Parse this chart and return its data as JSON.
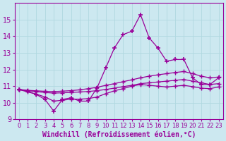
{
  "xlabel": "Windchill (Refroidissement éolien,°C)",
  "x": [
    0,
    1,
    2,
    3,
    4,
    5,
    6,
    7,
    8,
    9,
    10,
    11,
    12,
    13,
    14,
    15,
    16,
    17,
    18,
    19,
    20,
    21,
    22,
    23
  ],
  "y_peak": [
    10.8,
    10.7,
    10.5,
    10.2,
    9.5,
    10.2,
    10.3,
    10.1,
    10.1,
    10.9,
    12.1,
    13.3,
    14.1,
    14.3,
    15.3,
    13.9,
    13.3,
    12.5,
    12.6,
    12.6,
    11.5,
    11.1,
    11.1,
    11.5
  ],
  "y_upper": [
    10.8,
    10.75,
    10.72,
    10.69,
    10.67,
    10.7,
    10.73,
    10.78,
    10.85,
    10.93,
    11.05,
    11.15,
    11.27,
    11.38,
    11.5,
    11.6,
    11.68,
    11.75,
    11.82,
    11.88,
    11.75,
    11.6,
    11.5,
    11.55
  ],
  "y_mid": [
    10.8,
    10.73,
    10.67,
    10.62,
    10.58,
    10.6,
    10.62,
    10.65,
    10.68,
    10.73,
    10.8,
    10.88,
    10.97,
    11.05,
    11.15,
    11.2,
    11.25,
    11.3,
    11.35,
    11.4,
    11.3,
    11.2,
    11.1,
    11.15
  ],
  "y_lower": [
    10.8,
    10.65,
    10.52,
    10.35,
    10.1,
    10.15,
    10.22,
    10.22,
    10.25,
    10.35,
    10.55,
    10.72,
    10.85,
    11.0,
    11.1,
    11.05,
    11.0,
    10.95,
    11.0,
    11.05,
    10.97,
    10.88,
    10.85,
    10.95
  ],
  "color": "#990099",
  "bg_color": "#cce8f0",
  "grid_color": "#b0d8e0",
  "ylim": [
    9,
    16
  ],
  "yticks": [
    9,
    10,
    11,
    12,
    13,
    14,
    15
  ],
  "marker": "+",
  "marker_size": 4,
  "line_width": 0.9,
  "font_color": "#990099",
  "tick_fontsize": 6,
  "xlabel_fontsize": 7
}
